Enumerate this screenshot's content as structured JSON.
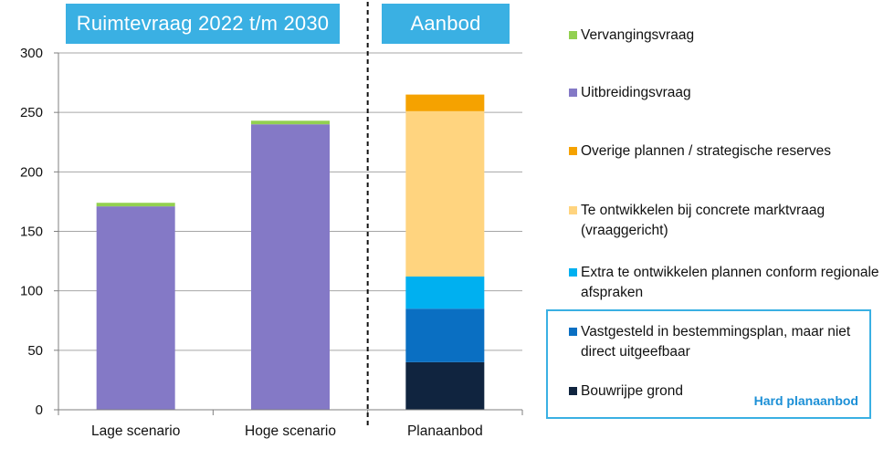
{
  "headers": {
    "left": "Ruimtevraag 2022 t/m 2030",
    "right": "Aanbod"
  },
  "hard_supply_label": "Hard planaanbod",
  "chart_data": {
    "type": "bar",
    "stacked": true,
    "categories": [
      "Lage scenario",
      "Hoge scenario",
      "Planaanbod"
    ],
    "ylim": [
      0,
      300
    ],
    "yticks": [
      0,
      50,
      100,
      150,
      200,
      250,
      300
    ],
    "grid": true,
    "legend_position": "right",
    "series": [
      {
        "name": "Bouwrijpe grond",
        "color": "#10243f",
        "values": [
          0,
          0,
          40
        ]
      },
      {
        "name": "Vastgesteld in bestemmingsplan, maar niet direct uitgeefbaar",
        "color": "#0a6fc2",
        "values": [
          0,
          0,
          45
        ]
      },
      {
        "name": "Extra te ontwikkelen plannen conform regionale afspraken",
        "color": "#00b0f0",
        "values": [
          0,
          0,
          27
        ]
      },
      {
        "name": "Te ontwikkelen bij concrete marktvraag (vraaggericht)",
        "color": "#ffd47f",
        "values": [
          0,
          0,
          139
        ]
      },
      {
        "name": "Overige plannen / strategische reserves",
        "color": "#f5a200",
        "values": [
          0,
          0,
          14
        ]
      },
      {
        "name": "Uitbreidingsvraag",
        "color": "#8479c6",
        "values": [
          171,
          240,
          0
        ]
      },
      {
        "name": "Vervangingsvraag",
        "color": "#92d050",
        "values": [
          3,
          3,
          0
        ]
      }
    ],
    "legend_order": [
      "Vervangingsvraag",
      "Uitbreidingsvraag",
      "Overige plannen / strategische reserves",
      "Te ontwikkelen bij concrete marktvraag (vraaggericht)",
      "Extra te ontwikkelen plannen conform regionale afspraken",
      "Vastgesteld in bestemmingsplan, maar niet direct uitgeefbaar",
      "Bouwrijpe grond"
    ]
  }
}
